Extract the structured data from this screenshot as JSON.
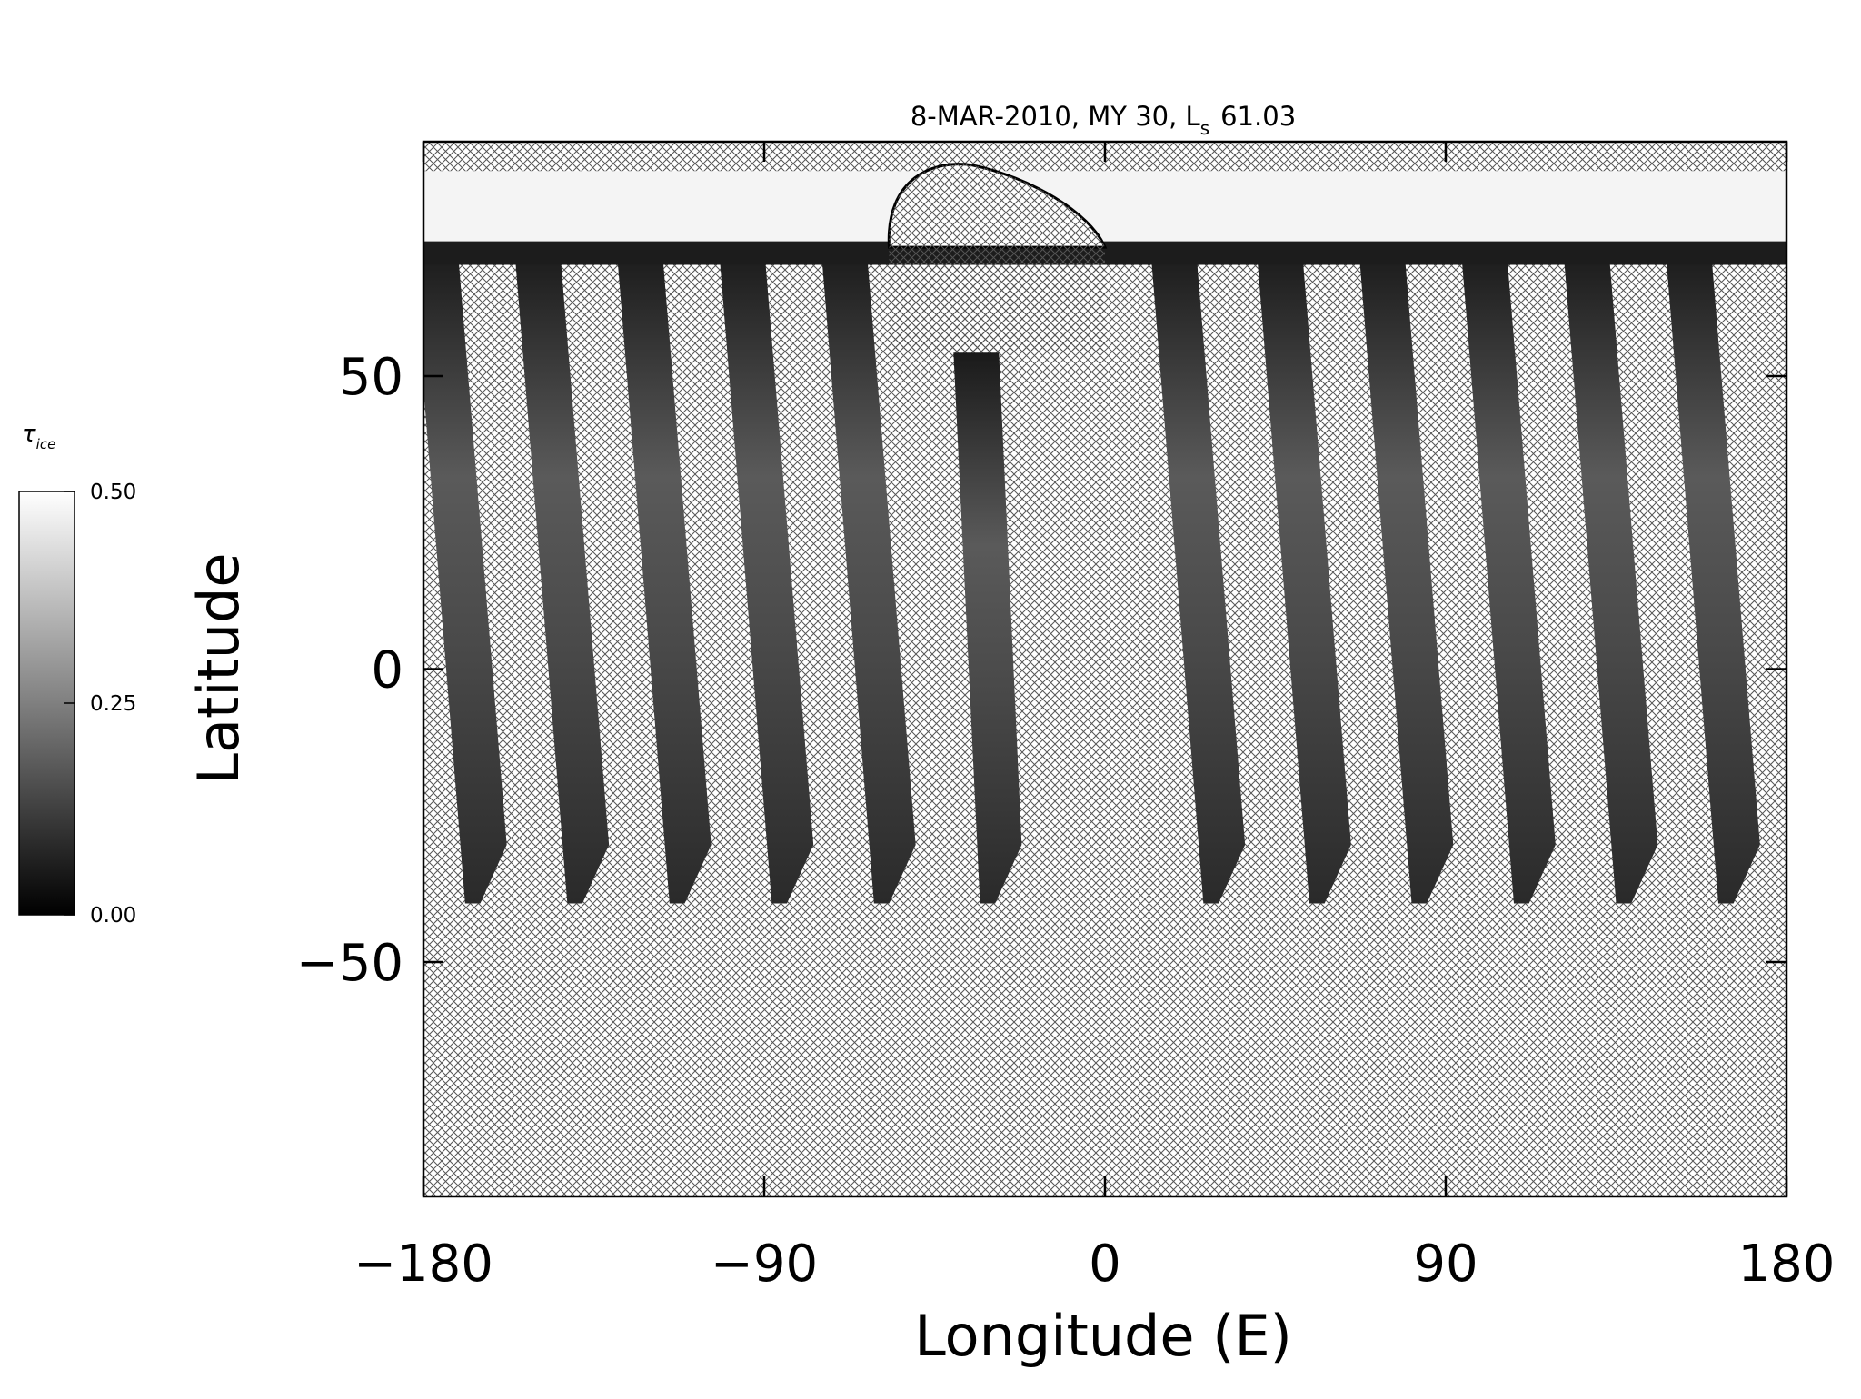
{
  "chart_data": {
    "type": "map",
    "title": [
      "8-MAR-2010, MY 30,  L",
      "s",
      "61.03"
    ],
    "x_label": "Longitude (E)",
    "y_label": "Latitude",
    "xlim": [
      -180,
      180
    ],
    "ylim": [
      -90,
      90
    ],
    "xticks": [
      {
        "value": -180,
        "label": "−180"
      },
      {
        "value": -90,
        "label": "−90"
      },
      0,
      90,
      180
    ],
    "yticks": [
      {
        "value": -50,
        "label": "−50"
      },
      0,
      50
    ],
    "colorbar": {
      "label": [
        "τ",
        "ice"
      ],
      "range": [
        0,
        0.5
      ],
      "ticks": [
        {
          "value": 0,
          "label": "0.00"
        },
        {
          "value": 0.25,
          "label": "0.25"
        },
        {
          "value": 0.5,
          "label": "0.50"
        }
      ]
    }
  }
}
